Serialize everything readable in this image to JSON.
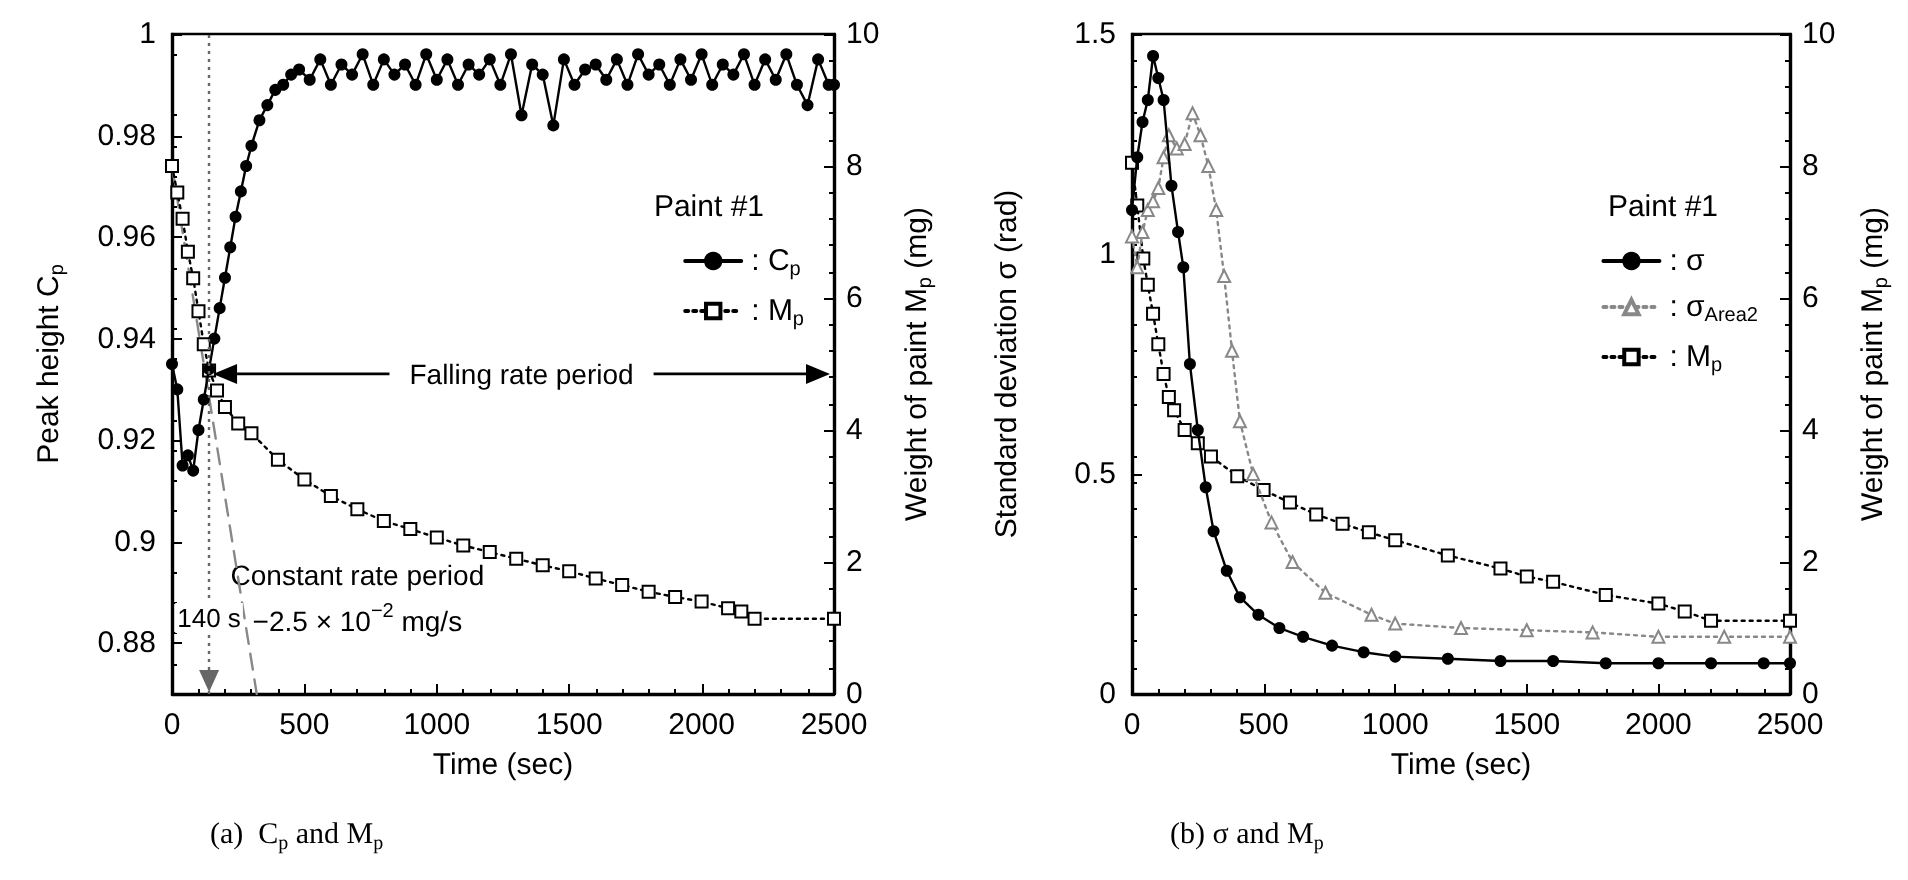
{
  "chart_data": [
    {
      "type": "line",
      "title": "(a)  C$_{p}$ and M$_{p}$",
      "xlabel": "Time (sec)",
      "ylabel": "Peak height C$_{p}$",
      "y2label": "Weight of paint M$_{p}$ (mg)",
      "legend_title": "Paint #1",
      "legend": "right",
      "grid": false,
      "xlim": [
        0,
        2500
      ],
      "xticks": [
        0,
        500,
        1000,
        1500,
        2000,
        2500
      ],
      "ylim": [
        0.87,
        1
      ],
      "yticks": [
        0.88,
        0.9,
        0.92,
        0.94,
        0.96,
        0.98,
        1
      ],
      "y2lim": [
        0,
        10
      ],
      "y2ticks": [
        0,
        2,
        4,
        6,
        8,
        10
      ],
      "series": [
        {
          "name": ": C$_{p}$",
          "color": "#000000",
          "marker": "circle",
          "line_style": "solid",
          "x": [
            0,
            20,
            40,
            60,
            80,
            100,
            120,
            140,
            160,
            180,
            200,
            220,
            240,
            260,
            280,
            300,
            330,
            360,
            390,
            420,
            450,
            480,
            520,
            560,
            600,
            640,
            680,
            720,
            760,
            800,
            840,
            880,
            920,
            960,
            1000,
            1040,
            1080,
            1120,
            1160,
            1200,
            1240,
            1280,
            1320,
            1360,
            1400,
            1440,
            1480,
            1520,
            1560,
            1600,
            1640,
            1680,
            1720,
            1760,
            1800,
            1840,
            1880,
            1920,
            1960,
            2000,
            2040,
            2080,
            2120,
            2160,
            2200,
            2240,
            2280,
            2320,
            2360,
            2400,
            2440,
            2480,
            2500
          ],
          "values": [
            0.935,
            0.93,
            0.915,
            0.917,
            0.914,
            0.922,
            0.928,
            0.934,
            0.94,
            0.946,
            0.952,
            0.958,
            0.964,
            0.969,
            0.974,
            0.978,
            0.983,
            0.986,
            0.989,
            0.99,
            0.992,
            0.993,
            0.991,
            0.995,
            0.99,
            0.994,
            0.992,
            0.996,
            0.99,
            0.995,
            0.992,
            0.994,
            0.99,
            0.996,
            0.991,
            0.995,
            0.99,
            0.994,
            0.992,
            0.995,
            0.99,
            0.996,
            0.984,
            0.994,
            0.992,
            0.982,
            0.995,
            0.99,
            0.993,
            0.994,
            0.991,
            0.995,
            0.99,
            0.996,
            0.992,
            0.994,
            0.99,
            0.995,
            0.991,
            0.996,
            0.99,
            0.994,
            0.992,
            0.996,
            0.99,
            0.995,
            0.991,
            0.996,
            0.99,
            0.986,
            0.995,
            0.99,
            0.99
          ]
        },
        {
          "name": ": M$_{p}$",
          "color": "#000000",
          "marker": "square",
          "line_style": "dotted",
          "axis": "y2",
          "x": [
            0,
            20,
            40,
            60,
            80,
            100,
            120,
            140,
            170,
            200,
            250,
            300,
            400,
            500,
            600,
            700,
            800,
            900,
            1000,
            1100,
            1200,
            1300,
            1400,
            1500,
            1600,
            1700,
            1800,
            1900,
            2000,
            2100,
            2150,
            2200,
            2500
          ],
          "values": [
            8.0,
            7.6,
            7.2,
            6.7,
            6.3,
            5.8,
            5.3,
            4.9,
            4.6,
            4.35,
            4.1,
            3.95,
            3.55,
            3.25,
            3.0,
            2.8,
            2.62,
            2.5,
            2.37,
            2.25,
            2.15,
            2.05,
            1.95,
            1.86,
            1.75,
            1.65,
            1.55,
            1.47,
            1.4,
            1.3,
            1.25,
            1.14,
            1.14
          ]
        },
        {
          "type": "line",
          "color": "#888888",
          "marker": "none",
          "line_style": "dashed",
          "axis": "y2",
          "x": [
            0,
            320
          ],
          "values": [
            8,
            0
          ]
        }
      ],
      "ref_lines": [
        {
          "axis": "x",
          "value": 140,
          "label": "140 s",
          "color": "#666666",
          "line_style": "dotted"
        }
      ],
      "annotations": [
        "Falling rate period",
        "Constant rate period",
        "−2.5 × 10$^{−2}$ mg/s"
      ]
    },
    {
      "type": "line",
      "title": "(b) σ and M$_{p}$",
      "xlabel": "Time (sec)",
      "ylabel": "Standard deviation σ (rad)",
      "y2label": "Weight of paint M$_{p}$ (mg)",
      "legend_title": "Paint #1",
      "legend": "right",
      "grid": false,
      "xlim": [
        0,
        2500
      ],
      "xticks": [
        0,
        500,
        1000,
        1500,
        2000,
        2500
      ],
      "ylim": [
        0,
        1.5
      ],
      "yticks": [
        0,
        0.5,
        1,
        1.5
      ],
      "y2lim": [
        0,
        10
      ],
      "y2ticks": [
        0,
        2,
        4,
        6,
        8,
        10
      ],
      "series": [
        {
          "name": ": σ",
          "color": "#000000",
          "marker": "circle",
          "line_style": "solid",
          "x": [
            0,
            20,
            40,
            60,
            80,
            100,
            120,
            150,
            175,
            195,
            220,
            250,
            280,
            310,
            360,
            410,
            480,
            560,
            650,
            760,
            880,
            1000,
            1200,
            1400,
            1600,
            1800,
            2000,
            2200,
            2400,
            2500
          ],
          "values": [
            1.1,
            1.22,
            1.3,
            1.35,
            1.45,
            1.4,
            1.35,
            1.155,
            1.05,
            0.97,
            0.75,
            0.6,
            0.47,
            0.37,
            0.28,
            0.22,
            0.18,
            0.15,
            0.13,
            0.11,
            0.095,
            0.085,
            0.08,
            0.075,
            0.075,
            0.07,
            0.07,
            0.07,
            0.07,
            0.07
          ]
        },
        {
          "name": ": σ$_{Area2}$",
          "color": "#888888",
          "marker": "triangle",
          "line_style": "dotted",
          "x": [
            0,
            20,
            40,
            60,
            80,
            100,
            120,
            140,
            170,
            200,
            230,
            260,
            290,
            320,
            350,
            380,
            410,
            460,
            530,
            610,
            735,
            910,
            1000,
            1250,
            1500,
            1750,
            2000,
            2250,
            2500
          ],
          "values": [
            1.04,
            0.97,
            1.05,
            1.1,
            1.12,
            1.15,
            1.22,
            1.27,
            1.24,
            1.25,
            1.32,
            1.27,
            1.2,
            1.1,
            0.95,
            0.78,
            0.62,
            0.5,
            0.39,
            0.3,
            0.23,
            0.18,
            0.16,
            0.15,
            0.145,
            0.14,
            0.13,
            0.13,
            0.13
          ]
        },
        {
          "name": ": M$_{p}$",
          "color": "#000000",
          "marker": "square",
          "line_style": "dotted",
          "axis": "y2",
          "x": [
            0,
            20,
            43,
            60,
            80,
            100,
            120,
            140,
            160,
            200,
            250,
            300,
            400,
            500,
            600,
            700,
            800,
            900,
            1000,
            1200,
            1400,
            1500,
            1600,
            1800,
            2000,
            2100,
            2200,
            2500
          ],
          "values": [
            8.05,
            7.4,
            6.6,
            6.2,
            5.76,
            5.3,
            4.85,
            4.5,
            4.3,
            4.0,
            3.8,
            3.6,
            3.3,
            3.09,
            2.9,
            2.72,
            2.58,
            2.45,
            2.33,
            2.1,
            1.9,
            1.78,
            1.7,
            1.5,
            1.37,
            1.25,
            1.11,
            1.11
          ]
        }
      ]
    }
  ]
}
